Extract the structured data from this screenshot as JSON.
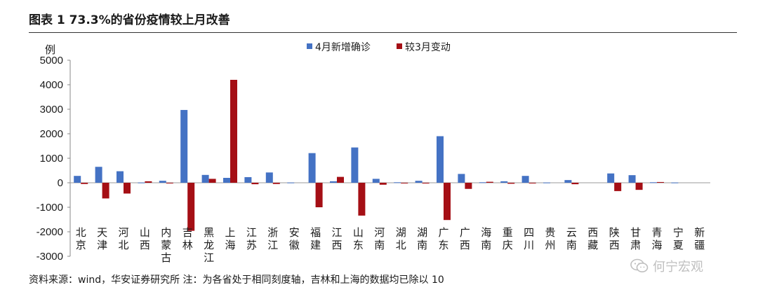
{
  "figure": {
    "title": "图表 1 73.3%的省份疫情较上月改善",
    "source_note": "资料来源：wind，华安证券研究所 注：为各省处于相同刻度轴，吉林和上海的数据均已除以 10",
    "watermark": "何宁宏观",
    "watermark_icon": "wechat-icon"
  },
  "chart_data": {
    "type": "bar",
    "ylabel": "例",
    "ylim": [
      -3000,
      5000
    ],
    "yticks": [
      -3000,
      -2000,
      -1000,
      0,
      1000,
      2000,
      3000,
      4000,
      5000
    ],
    "ytick_labels": [
      "-3000",
      "-2000",
      "-1000",
      "0",
      "1000",
      "2000",
      "3000",
      "4000",
      "5000"
    ],
    "legend_position": "top",
    "categories": [
      "北京",
      "天津",
      "河北",
      "山西",
      "内蒙古",
      "吉林",
      "黑龙江",
      "上海",
      "江苏",
      "浙江",
      "安徽",
      "福建",
      "江西",
      "山东",
      "河南",
      "湖北",
      "湖南",
      "广东",
      "广西",
      "海南",
      "重庆",
      "四川",
      "贵州",
      "云南",
      "西藏",
      "陕西",
      "甘肃",
      "青海",
      "宁夏",
      "新疆"
    ],
    "category_labels": [
      [
        "北",
        "京"
      ],
      [
        "天",
        "津"
      ],
      [
        "河",
        "北"
      ],
      [
        "山",
        "西"
      ],
      [
        "内",
        "蒙",
        "古"
      ],
      [
        "吉",
        "林"
      ],
      [
        "黑",
        "龙",
        "江"
      ],
      [
        "上",
        "海"
      ],
      [
        "江",
        "苏"
      ],
      [
        "浙",
        "江"
      ],
      [
        "安",
        "徽"
      ],
      [
        "福",
        "建"
      ],
      [
        "江",
        "西"
      ],
      [
        "山",
        "东"
      ],
      [
        "河",
        "南"
      ],
      [
        "湖",
        "北"
      ],
      [
        "湖",
        "南"
      ],
      [
        "广",
        "东"
      ],
      [
        "广",
        "西"
      ],
      [
        "海",
        "南"
      ],
      [
        "重",
        "庆"
      ],
      [
        "四",
        "川"
      ],
      [
        "贵",
        "州"
      ],
      [
        "云",
        "南"
      ],
      [
        "西",
        "藏"
      ],
      [
        "陕",
        "西"
      ],
      [
        "甘",
        "肃"
      ],
      [
        "青",
        "海"
      ],
      [
        "宁",
        "夏"
      ],
      [
        "新",
        "疆"
      ]
    ],
    "series": [
      {
        "name": "4月新增确诊",
        "color": "#4472C4",
        "values": [
          280,
          650,
          470,
          10,
          80,
          2970,
          320,
          200,
          230,
          420,
          10,
          1210,
          60,
          1440,
          160,
          20,
          80,
          1900,
          360,
          20,
          60,
          280,
          10,
          110,
          0,
          380,
          310,
          20,
          10,
          0
        ]
      },
      {
        "name": "较3月变动",
        "color": "#A50F15",
        "values": [
          -50,
          -640,
          -440,
          60,
          -10,
          -1960,
          160,
          4200,
          -60,
          -50,
          0,
          -1000,
          240,
          -1340,
          -80,
          -10,
          -30,
          -1520,
          -250,
          40,
          -40,
          -20,
          0,
          -60,
          0,
          -340,
          -290,
          30,
          0,
          0
        ]
      }
    ]
  }
}
